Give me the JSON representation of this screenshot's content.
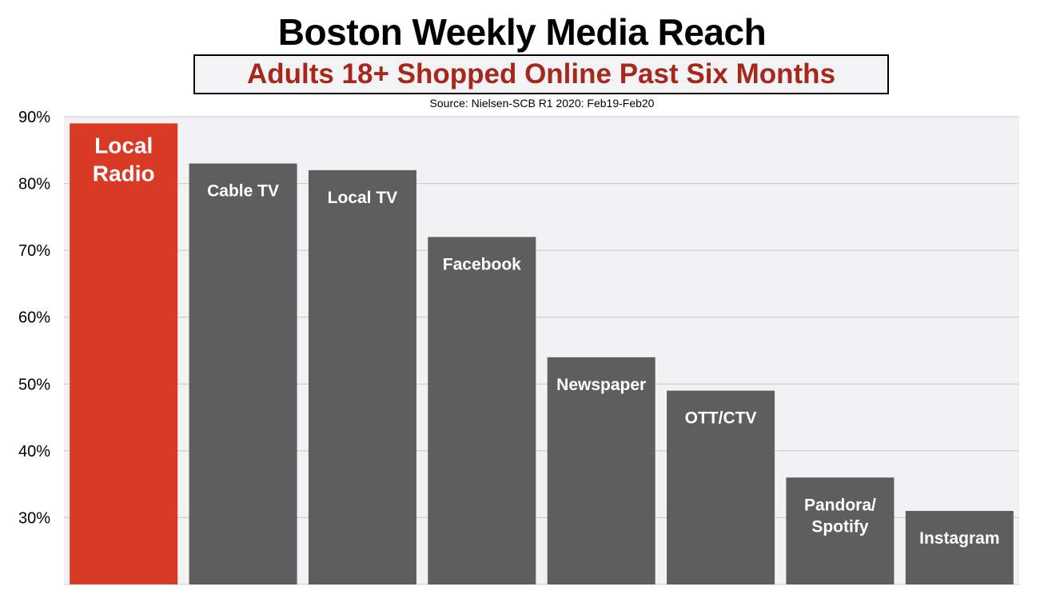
{
  "title": "Boston Weekly Media Reach",
  "subtitle": "Adults 18+ Shopped Online Past Six Months",
  "source": "Source: Nielsen-SCB R1 2020: Feb19-Feb20",
  "colors": {
    "highlight_bar": "#d83a26",
    "bar": "#5e5e5e",
    "subtitle_text": "#a6281a",
    "plot_background": "#f2f2f4",
    "gridline": "#c8c8c8"
  },
  "chart_data": {
    "type": "bar",
    "title": "Boston Weekly Media Reach",
    "subtitle": "Adults 18+ Shopped Online Past Six Months",
    "xlabel": "",
    "ylabel": "",
    "ylim": [
      20,
      90
    ],
    "grid": true,
    "yticks": [
      "30%",
      "40%",
      "50%",
      "60%",
      "70%",
      "80%",
      "90%"
    ],
    "categories": [
      "Local Radio",
      "Cable TV",
      "Local TV",
      "Facebook",
      "Newspaper",
      "OTT/CTV",
      "Pandora/ Spotify",
      "Instagram"
    ],
    "label_lines": [
      [
        "Local",
        "Radio"
      ],
      [
        "Cable TV"
      ],
      [
        "Local TV"
      ],
      [
        "Facebook"
      ],
      [
        "Newspaper"
      ],
      [
        "OTT/CTV"
      ],
      [
        "Pandora/",
        "Spotify"
      ],
      [
        "Instagram"
      ]
    ],
    "values": [
      89,
      83,
      82,
      72,
      54,
      49,
      36,
      31
    ],
    "highlight_index": 0
  }
}
